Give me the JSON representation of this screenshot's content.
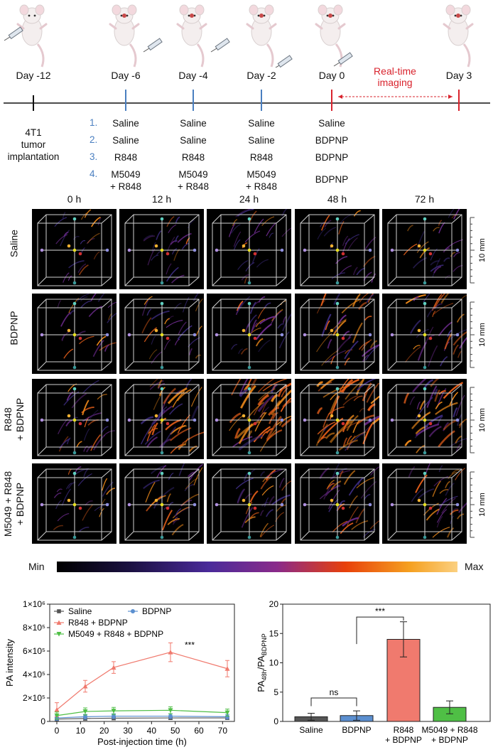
{
  "timeline": {
    "days": [
      "Day -12",
      "Day -6",
      "Day -4",
      "Day -2",
      "Day 0",
      "Day 3"
    ],
    "realtime_label": [
      "Real-time",
      "imaging"
    ],
    "implant_label": [
      "4T1",
      "tumor",
      "implantation"
    ]
  },
  "groups": {
    "numbers": [
      "1.",
      "2.",
      "3.",
      "4."
    ],
    "rows": [
      [
        "Saline",
        "Saline",
        "Saline",
        "Saline"
      ],
      [
        "Saline",
        "Saline",
        "Saline",
        "BDPNP"
      ],
      [
        "R848",
        "R848",
        "R848",
        "BDPNP"
      ],
      [
        "M5049\n+ R848",
        "M5049\n+ R848",
        "M5049\n+ R848",
        "BDPNP"
      ]
    ]
  },
  "imaging": {
    "columns": [
      "0 h",
      "12 h",
      "24 h",
      "48 h",
      "72 h"
    ],
    "rows": [
      "Saline",
      "BDPNP",
      "R848\n+ BDPNP",
      "M5049 + R848\n+ BDPNP"
    ],
    "scale_label": "10 mm",
    "colorbar_min": "Min",
    "colorbar_max": "Max"
  },
  "colors": {
    "blue_tick": "#4a7fc0",
    "red": "#d9232d",
    "saline": "#555555",
    "bdpnp": "#5b8fd0",
    "r848": "#f07a6e",
    "m5049": "#4fbf45"
  },
  "chart_data": [
    {
      "type": "line",
      "xlabel": "Post-injection time (h)",
      "ylabel": "PA intensity",
      "x": [
        0,
        12,
        24,
        48,
        72
      ],
      "xticks": [
        "0",
        "10",
        "20",
        "30",
        "40",
        "50",
        "60",
        "70"
      ],
      "yticks": [
        "0",
        "2×10⁵",
        "4×10⁵",
        "6×10⁵",
        "8×10⁵",
        "1×10⁶"
      ],
      "ylim": [
        0,
        1000000
      ],
      "xlim": [
        -3,
        75
      ],
      "annotation": "***",
      "series": [
        {
          "name": "Saline",
          "values": [
            20000,
            25000,
            28000,
            30000,
            30000
          ],
          "err": [
            15000,
            15000,
            15000,
            15000,
            15000
          ]
        },
        {
          "name": "BDPNP",
          "values": [
            30000,
            40000,
            45000,
            45000,
            40000
          ],
          "err": [
            20000,
            20000,
            20000,
            20000,
            20000
          ]
        },
        {
          "name": "R848 + BDPNP",
          "values": [
            100000,
            300000,
            460000,
            590000,
            450000
          ],
          "err": [
            60000,
            50000,
            50000,
            80000,
            70000
          ]
        },
        {
          "name": "M5049 + R848 + BDPNP",
          "values": [
            50000,
            85000,
            90000,
            95000,
            75000
          ],
          "err": [
            30000,
            30000,
            30000,
            30000,
            30000
          ]
        }
      ]
    },
    {
      "type": "bar",
      "ylabel": "PA48h/PABDPNP",
      "ylabel_main": "PA",
      "ylabel_sub1": "48h",
      "ylabel_slash": "/PA",
      "ylabel_sub2": "BDPNP",
      "categories": [
        "Saline",
        "BDPNP",
        "R848\n+ BDPNP",
        "M5049 + R848\n+ BDPNP"
      ],
      "values": [
        0.8,
        1.0,
        14.0,
        2.4
      ],
      "err": [
        0.6,
        0.8,
        3.0,
        1.1
      ],
      "yticks": [
        "0",
        "5",
        "10",
        "15",
        "20"
      ],
      "ylim": [
        0,
        20
      ],
      "sig_labels": [
        "***",
        "ns"
      ]
    }
  ]
}
